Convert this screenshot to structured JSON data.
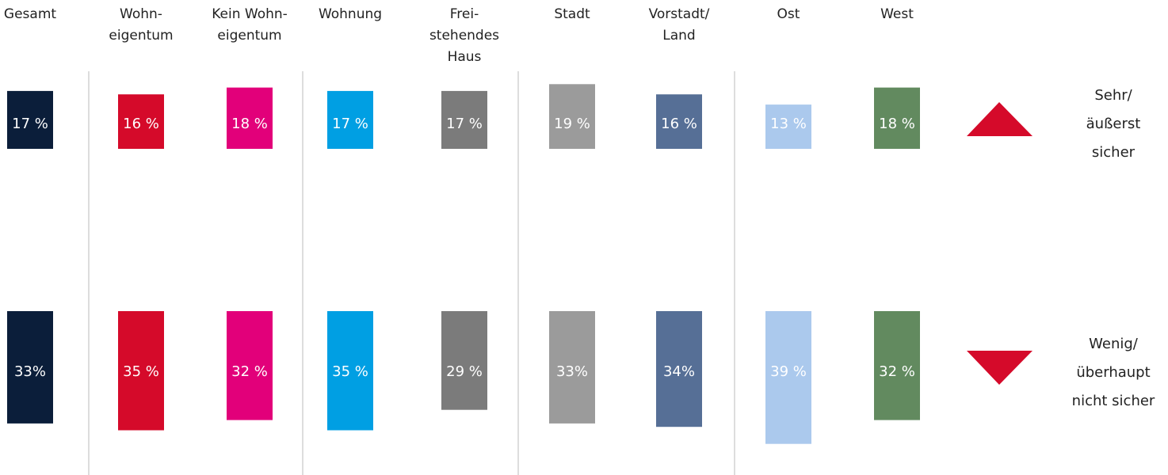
{
  "chart_data": {
    "type": "bar",
    "categories": [
      [
        "Gesamt"
      ],
      [
        "Wohn-",
        "eigentum"
      ],
      [
        "Kein Wohn-",
        "eigentum"
      ],
      [
        "Wohnung"
      ],
      [
        "Frei-",
        "stehendes",
        "Haus"
      ],
      [
        "Stadt"
      ],
      [
        "Vorstadt/",
        "Land"
      ],
      [
        "Ost"
      ],
      [
        "West"
      ]
    ],
    "colors": [
      "#0b1e3a",
      "#d50a2a",
      "#e2007a",
      "#009fe3",
      "#7b7b7b",
      "#9b9b9b",
      "#566f96",
      "#abc9ed",
      "#628a5f"
    ],
    "series": [
      {
        "name": [
          "Sehr/",
          "äußerst",
          "sicher"
        ],
        "color": "#d50a2a",
        "values": [
          17,
          16,
          18,
          17,
          17,
          19,
          16,
          13,
          18
        ],
        "value_labels": [
          "17 %",
          "16 %",
          "18 %",
          "17 %",
          "17 %",
          "19 %",
          "16 %",
          "13 %",
          "18 %"
        ]
      },
      {
        "name": [
          "Wenig/",
          "überhaupt",
          "nicht sicher"
        ],
        "color": "#d50a2a",
        "values": [
          33,
          35,
          32,
          35,
          29,
          33,
          34,
          39,
          32
        ],
        "value_labels": [
          "33%",
          "35 %",
          "32 %",
          "35 %",
          "29 %",
          "33%",
          "34%",
          "39 %",
          "32 %"
        ]
      }
    ]
  }
}
